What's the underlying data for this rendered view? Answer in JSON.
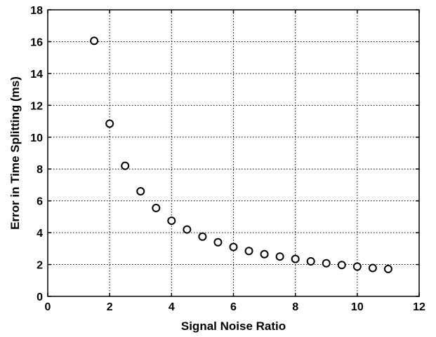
{
  "chart_data": {
    "type": "scatter",
    "xlabel": "Signal Noise Ratio",
    "ylabel": "Error in Time Splitting (ms)",
    "xlim": [
      0,
      12
    ],
    "ylim": [
      0,
      18
    ],
    "x_ticks": [
      "0",
      "2",
      "4",
      "6",
      "8",
      "10",
      "12"
    ],
    "y_ticks": [
      "0",
      "2",
      "4",
      "6",
      "8",
      "10",
      "12",
      "14",
      "16",
      "18"
    ],
    "grid": true,
    "marker": "circle-open",
    "colors": {
      "marker": "#000000",
      "grid": "#000000",
      "background": "#ffffff"
    },
    "series": [
      {
        "x": [
          1.5,
          2.0,
          2.5,
          3.0,
          3.5,
          4.0,
          4.5,
          5.0,
          5.5,
          6.0,
          6.5,
          7.0,
          7.5,
          8.0,
          8.5,
          9.0,
          9.5,
          10.0,
          10.5,
          11.0
        ],
        "y": [
          16.05,
          10.85,
          8.2,
          6.6,
          5.55,
          4.75,
          4.2,
          3.75,
          3.4,
          3.1,
          2.85,
          2.65,
          2.5,
          2.35,
          2.2,
          2.08,
          1.97,
          1.87,
          1.78,
          1.72
        ]
      }
    ]
  }
}
